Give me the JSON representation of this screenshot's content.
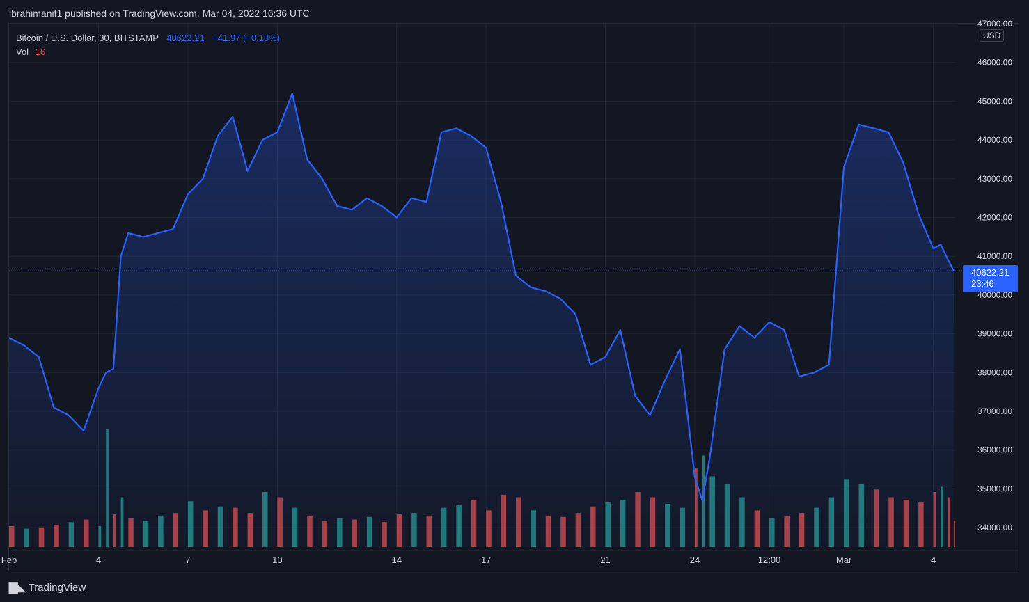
{
  "publish_line": "ibrahimanif1 published on TradingView.com, Mar 04, 2022 16:36 UTC",
  "legend": {
    "symbol": "Bitcoin / U.S. Dollar, 30, BITSTAMP",
    "last": "40622.21",
    "change": "−41.97 (−0.10%)",
    "vol_label": "Vol",
    "vol_value": "16"
  },
  "currency": "USD",
  "price_tag": {
    "price": "40622.21",
    "countdown": "23:46"
  },
  "brand": "TradingView",
  "colors": {
    "background": "#131722",
    "line": "#2962ff",
    "grid": "#1e222d",
    "vol_up": "#26a69a",
    "vol_down": "#ef5350",
    "text": "#d1d4dc"
  },
  "chart_data": {
    "type": "area",
    "title": "Bitcoin / U.S. Dollar, 30, BITSTAMP",
    "xlabel": "",
    "ylabel": "",
    "ylim": [
      33500,
      47000
    ],
    "y_ticks": [
      34000,
      35000,
      36000,
      37000,
      38000,
      39000,
      40000,
      41000,
      42000,
      43000,
      44000,
      45000,
      46000,
      47000
    ],
    "x_ticks": [
      {
        "label": "Feb",
        "t": "2022-02-01"
      },
      {
        "label": "4",
        "t": "2022-02-04"
      },
      {
        "label": "7",
        "t": "2022-02-07"
      },
      {
        "label": "10",
        "t": "2022-02-10"
      },
      {
        "label": "14",
        "t": "2022-02-14"
      },
      {
        "label": "17",
        "t": "2022-02-17"
      },
      {
        "label": "21",
        "t": "2022-02-21"
      },
      {
        "label": "24",
        "t": "2022-02-24"
      },
      {
        "label": "12:00",
        "t": "2022-02-26 12:00"
      },
      {
        "label": "Mar",
        "t": "2022-03-01"
      },
      {
        "label": "4",
        "t": "2022-03-04"
      }
    ],
    "x": [
      "2022-01-31 12:00",
      "2022-02-01 00:00",
      "2022-02-01 12:00",
      "2022-02-02 00:00",
      "2022-02-02 12:00",
      "2022-02-03 00:00",
      "2022-02-03 12:00",
      "2022-02-04 00:00",
      "2022-02-04 06:00",
      "2022-02-04 12:00",
      "2022-02-04 18:00",
      "2022-02-05 00:00",
      "2022-02-05 12:00",
      "2022-02-06 00:00",
      "2022-02-06 12:00",
      "2022-02-07 00:00",
      "2022-02-07 12:00",
      "2022-02-08 00:00",
      "2022-02-08 12:00",
      "2022-02-09 00:00",
      "2022-02-09 12:00",
      "2022-02-10 00:00",
      "2022-02-10 12:00",
      "2022-02-11 00:00",
      "2022-02-11 12:00",
      "2022-02-12 00:00",
      "2022-02-12 12:00",
      "2022-02-13 00:00",
      "2022-02-13 12:00",
      "2022-02-14 00:00",
      "2022-02-14 12:00",
      "2022-02-15 00:00",
      "2022-02-15 12:00",
      "2022-02-16 00:00",
      "2022-02-16 12:00",
      "2022-02-17 00:00",
      "2022-02-17 12:00",
      "2022-02-18 00:00",
      "2022-02-18 12:00",
      "2022-02-19 00:00",
      "2022-02-19 12:00",
      "2022-02-20 00:00",
      "2022-02-20 12:00",
      "2022-02-21 00:00",
      "2022-02-21 12:00",
      "2022-02-22 00:00",
      "2022-02-22 12:00",
      "2022-02-23 00:00",
      "2022-02-23 12:00",
      "2022-02-24 00:00",
      "2022-02-24 06:00",
      "2022-02-24 12:00",
      "2022-02-25 00:00",
      "2022-02-25 12:00",
      "2022-02-26 00:00",
      "2022-02-26 12:00",
      "2022-02-27 00:00",
      "2022-02-27 12:00",
      "2022-02-28 00:00",
      "2022-02-28 12:00",
      "2022-03-01 00:00",
      "2022-03-01 12:00",
      "2022-03-02 00:00",
      "2022-03-02 12:00",
      "2022-03-03 00:00",
      "2022-03-03 12:00",
      "2022-03-04 00:00",
      "2022-03-04 06:00",
      "2022-03-04 12:00",
      "2022-03-04 16:30"
    ],
    "series": [
      {
        "values": [
          38500,
          38900,
          38700,
          38400,
          37100,
          36900,
          36500,
          37600,
          38000,
          38100,
          41000,
          41600,
          41500,
          41600,
          41700,
          42600,
          43000,
          44100,
          44600,
          43200,
          44000,
          44200,
          45200,
          43500,
          43000,
          42300,
          42200,
          42500,
          42300,
          42000,
          42500,
          42400,
          44200,
          44300,
          44100,
          43800,
          42400,
          40500,
          40200,
          40100,
          39900,
          39500,
          38200,
          38400,
          39100,
          37400,
          36900,
          37800,
          38600,
          35300,
          34700,
          35800,
          38600,
          39200,
          38900,
          39300,
          39100,
          37900,
          38000,
          38200,
          43300,
          44400,
          44300,
          44200,
          43400,
          42100,
          41200,
          41300,
          40900,
          40622.21
        ]
      }
    ],
    "volume_ylim": [
      0,
      1800
    ],
    "volume": [
      180,
      160,
      140,
      150,
      170,
      190,
      210,
      160,
      900,
      250,
      380,
      220,
      200,
      240,
      260,
      350,
      280,
      310,
      300,
      260,
      420,
      380,
      300,
      240,
      200,
      220,
      210,
      230,
      190,
      250,
      260,
      240,
      300,
      320,
      360,
      280,
      400,
      380,
      280,
      240,
      230,
      260,
      310,
      340,
      360,
      420,
      380,
      330,
      300,
      600,
      700,
      540,
      480,
      380,
      280,
      220,
      240,
      260,
      300,
      380,
      520,
      480,
      440,
      380,
      360,
      340,
      420,
      460,
      380,
      200
    ],
    "volume_up": [
      true,
      false,
      true,
      false,
      false,
      true,
      false,
      true,
      true,
      false,
      true,
      false,
      true,
      true,
      false,
      true,
      false,
      true,
      false,
      false,
      true,
      false,
      true,
      false,
      false,
      true,
      false,
      true,
      false,
      false,
      true,
      false,
      true,
      true,
      false,
      false,
      false,
      false,
      true,
      false,
      false,
      false,
      false,
      true,
      true,
      false,
      false,
      true,
      true,
      false,
      true,
      true,
      true,
      true,
      false,
      true,
      false,
      false,
      true,
      true,
      true,
      true,
      false,
      false,
      false,
      false,
      false,
      true,
      false,
      false
    ],
    "last_price": 40622.21
  }
}
